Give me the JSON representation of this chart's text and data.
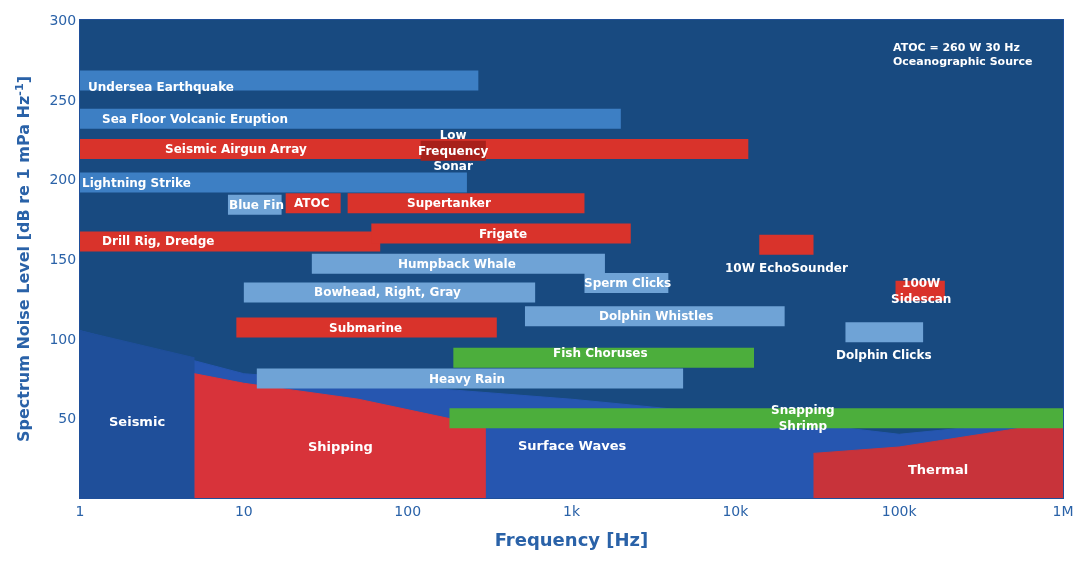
{
  "chart_data": {
    "type": "line",
    "xlabel": "Frequency [Hz]",
    "ylabel": "Spectrum Noise Level [dB re 1 mPa Hz$^{-1}$]",
    "log": "x",
    "xlim": [
      1,
      1000000
    ],
    "ylim": [
      0,
      300
    ],
    "xticks": [
      1,
      10,
      100,
      {
        "value": 1000,
        "label": "1k"
      },
      {
        "value": 10000,
        "label": "10k"
      },
      {
        "value": 100000,
        "label": "100k"
      },
      {
        "value": 1000000,
        "label": "1M"
      }
    ],
    "yticks": [
      50,
      100,
      150,
      200,
      250,
      300
    ],
    "grid": false,
    "legend": false,
    "series": [
      {
        "type": "area",
        "name": "Surface Waves",
        "color": "#2656b0",
        "x": [
          1,
          10,
          100,
          1000,
          10000,
          100000,
          1000000
        ],
        "values": [
          105,
          78,
          70,
          62,
          52,
          40,
          50
        ]
      },
      {
        "type": "area",
        "name": "Seismic",
        "color": "#1f4f9a",
        "x": [
          1,
          5
        ],
        "values": [
          105,
          88
        ]
      },
      {
        "type": "area",
        "name": "Shipping",
        "color": "#d8333a",
        "x": [
          5,
          10,
          50,
          300
        ],
        "values": [
          78,
          72,
          62,
          45
        ]
      },
      {
        "type": "area",
        "name": "Thermal",
        "color": "#c8333a",
        "x": [
          30000,
          100000,
          1000000
        ],
        "values": [
          28,
          32,
          48
        ]
      },
      {
        "color": "#4cae3c",
        "x": [
          180,
          1000000
        ],
        "values": [
          50,
          50
        ]
      },
      {
        "color": "#3d7fc4",
        "x": [
          1,
          270
        ],
        "values": [
          262,
          262
        ]
      },
      {
        "color": "#3d7fc4",
        "x": [
          1,
          2000
        ],
        "values": [
          238,
          238
        ]
      },
      {
        "color": "#d9332b",
        "x": [
          1,
          12000
        ],
        "values": [
          219,
          219
        ]
      },
      {
        "color": "#a8201a",
        "x": [
          120,
          300
        ],
        "values": [
          218,
          218
        ]
      },
      {
        "color": "#3d7fc4",
        "x": [
          1,
          230
        ],
        "values": [
          198,
          198
        ]
      },
      {
        "color": "#6fa3d6",
        "x": [
          8,
          17
        ],
        "values": [
          184,
          184
        ]
      },
      {
        "color": "#d9332b",
        "x": [
          18,
          39
        ],
        "values": [
          185,
          185
        ]
      },
      {
        "color": "#d9332b",
        "x": [
          43,
          1200
        ],
        "values": [
          185,
          185
        ]
      },
      {
        "color": "#d9332b",
        "x": [
          1,
          68
        ],
        "values": [
          161,
          161
        ]
      },
      {
        "color": "#d9332b",
        "x": [
          60,
          2300
        ],
        "values": [
          166,
          166
        ]
      },
      {
        "color": "#6fa3d6",
        "x": [
          26,
          1600
        ],
        "values": [
          147,
          147
        ]
      },
      {
        "name": "10W EchoSounder",
        "color": "#d9332b",
        "x": [
          14000,
          30000
        ],
        "values": [
          159,
          159
        ]
      },
      {
        "color": "#6fa3d6",
        "x": [
          1200,
          3900
        ],
        "values": [
          135,
          135
        ]
      },
      {
        "color": "#6fa3d6",
        "x": [
          10,
          600
        ],
        "values": [
          129,
          129
        ]
      },
      {
        "color": "#d9332b",
        "x": [
          95000,
          190000
        ],
        "values": [
          130,
          130
        ]
      },
      {
        "color": "#6fa3d6",
        "x": [
          520,
          20000
        ],
        "values": [
          114,
          114
        ]
      },
      {
        "color": "#d9332b",
        "x": [
          9,
          350
        ],
        "values": [
          107,
          107
        ]
      },
      {
        "name": "Dolphin Clicks",
        "color": "#6fa3d6",
        "x": [
          47000,
          140000
        ],
        "values": [
          104,
          104
        ]
      },
      {
        "color": "#4cae3c",
        "x": [
          190,
          13000
        ],
        "values": [
          88,
          88
        ]
      },
      {
        "color": "#6fa3d6",
        "x": [
          12,
          4800
        ],
        "values": [
          75,
          75
        ]
      }
    ],
    "annotations": [
      {
        "text": "Undersea Earthquake",
        "x": 3.1,
        "y": 258
      },
      {
        "text": "Sea Floor Volcanic Eruption",
        "x": 5,
        "y": 238
      },
      {
        "text": "Seismic Airgun Array",
        "x": 9,
        "y": 219
      },
      {
        "text": "Low\nFrequency\nSonar",
        "x": 190,
        "y": 218
      },
      {
        "text": "Lightning Strike",
        "x": 2.2,
        "y": 198
      },
      {
        "text": "Blue Fin",
        "x": 12,
        "y": 184
      },
      {
        "text": "ATOC",
        "x": 26,
        "y": 185
      },
      {
        "text": "Supertanker",
        "x": 180,
        "y": 185
      },
      {
        "text": "Drill Rig, Dredge",
        "x": 3,
        "y": 161
      },
      {
        "text": "Frigate",
        "x": 380,
        "y": 166
      },
      {
        "text": "Humpback Whale",
        "x": 200,
        "y": 147
      },
      {
        "text": "Sperm Clicks",
        "x": 2200,
        "y": 135
      },
      {
        "text": "Bowhead, Right, Gray",
        "x": 75,
        "y": 129
      },
      {
        "text": "100W\nSidescan",
        "x": 135000,
        "y": 130
      },
      {
        "text": "Dolphin Whistles",
        "x": 3300,
        "y": 114
      },
      {
        "text": "Submarine",
        "x": 55,
        "y": 107
      },
      {
        "text": "Fish Choruses",
        "x": 1500,
        "y": 91
      },
      {
        "text": "Heavy Rain",
        "x": 230,
        "y": 75
      },
      {
        "text": "Snapping\nShrimp",
        "x": 26000,
        "y": 50
      },
      "ATOC = 260 W 30 Hz\nOceanographic Source"
    ]
  }
}
